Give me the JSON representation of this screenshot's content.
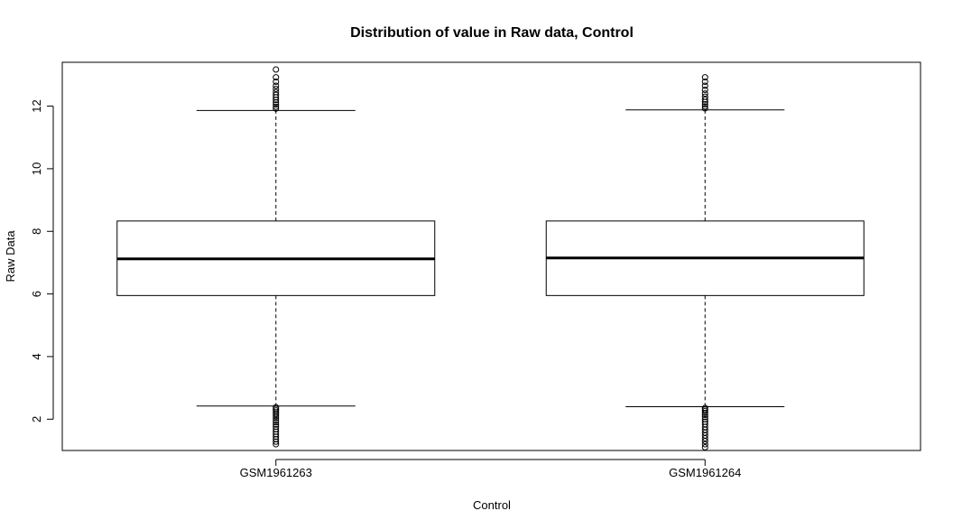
{
  "chart_data": {
    "type": "box",
    "title": "Distribution of value in Raw data, Control",
    "xlabel": "Control",
    "ylabel": "Raw Data",
    "categories": [
      "GSM1961263",
      "GSM1961264"
    ],
    "ylim": [
      1.0,
      13.4
    ],
    "yticks": [
      2,
      4,
      6,
      8,
      10,
      12
    ],
    "boxes": [
      {
        "name": "GSM1961263",
        "whisker_low": 2.42,
        "q1": 5.95,
        "median": 7.12,
        "q3": 8.33,
        "whisker_high": 11.86,
        "outliers_low": [
          2.38,
          2.33,
          2.28,
          2.22,
          2.16,
          2.1,
          2.04,
          1.97,
          1.9,
          1.83,
          1.76,
          1.68,
          1.6,
          1.52,
          1.44,
          1.36,
          1.28,
          1.2
        ],
        "outliers_high": [
          11.92,
          11.98,
          12.05,
          12.12,
          12.2,
          12.28,
          12.36,
          12.45,
          12.55,
          12.65,
          12.78,
          12.92,
          13.17
        ]
      },
      {
        "name": "GSM1961264",
        "whisker_low": 2.4,
        "q1": 5.95,
        "median": 7.15,
        "q3": 8.33,
        "whisker_high": 11.88,
        "outliers_low": [
          2.36,
          2.31,
          2.26,
          2.2,
          2.14,
          2.07,
          2.0,
          1.92,
          1.84,
          1.75,
          1.66,
          1.57,
          1.48,
          1.39,
          1.3,
          1.2,
          1.1
        ],
        "outliers_high": [
          11.93,
          11.99,
          12.06,
          12.13,
          12.21,
          12.3,
          12.4,
          12.52,
          12.65,
          12.78,
          12.92
        ]
      }
    ],
    "grid": false,
    "legend": "none"
  }
}
